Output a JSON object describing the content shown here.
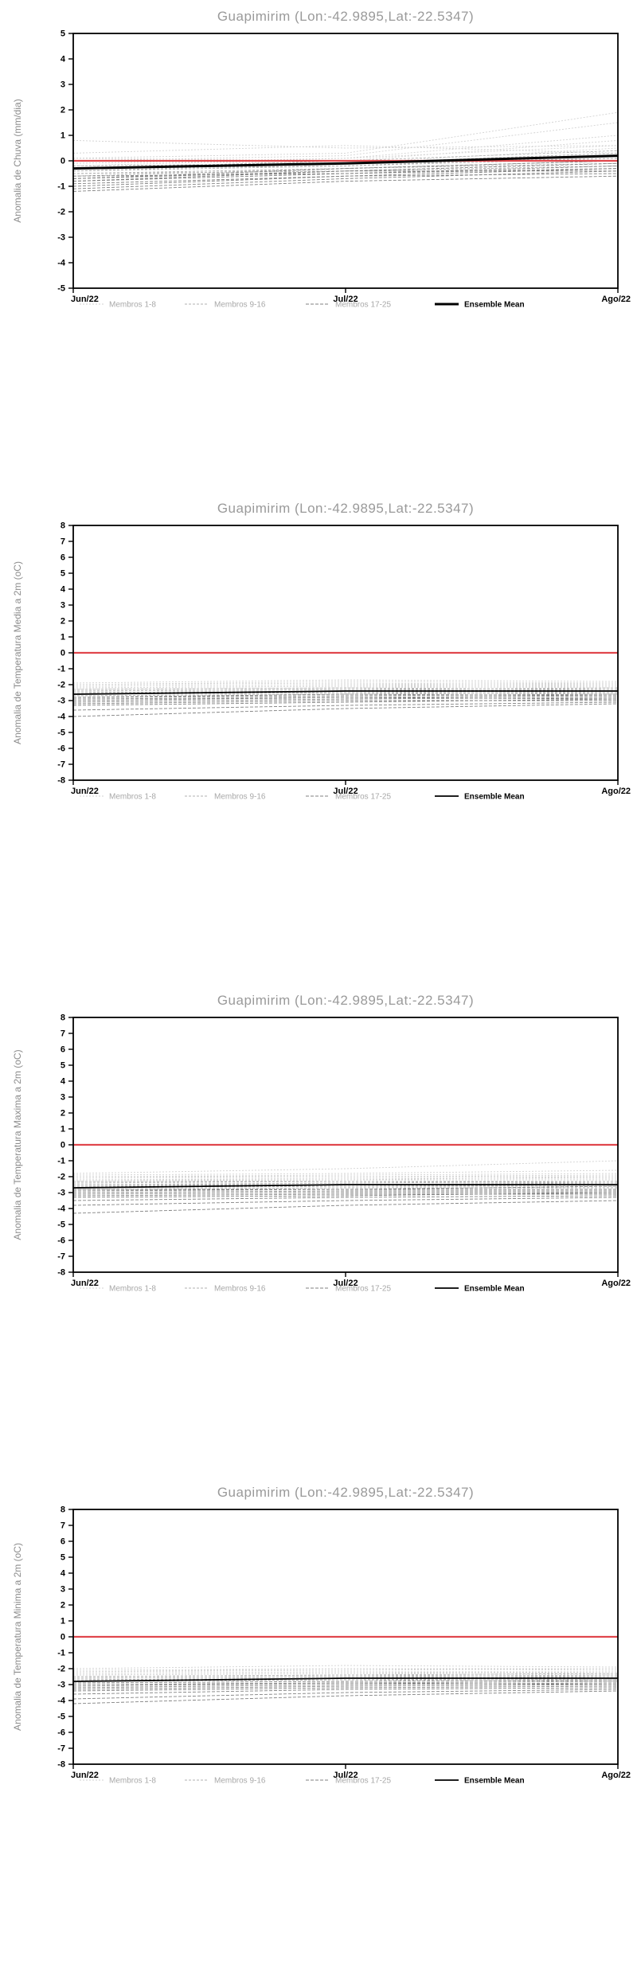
{
  "page": {
    "background": "#ffffff"
  },
  "colors": {
    "title": "#9a9a9a",
    "ylabel": "#8c8c8c",
    "axis": "#000000",
    "tick_label": "#000000",
    "members_1_8": "#d2d2d2",
    "members_9_16": "#b2b2b2",
    "members_17_25": "#828282",
    "ensemble_mean": "#000000",
    "zero_line": "#e0474c",
    "legend_member_label": "#a8a8a8",
    "legend_mean_label": "#000000"
  },
  "legend": {
    "items": [
      {
        "label": "Membros 1-8",
        "style": "dashed",
        "color_key": "members_1_8"
      },
      {
        "label": "Membros 9-16",
        "style": "dashed",
        "color_key": "members_9_16"
      },
      {
        "label": "Membros 17-25",
        "style": "dashed",
        "color_key": "members_17_25"
      },
      {
        "label": "Ensemble Mean",
        "style": "solid",
        "color_key": "ensemble_mean"
      }
    ]
  },
  "chart_data": [
    {
      "type": "line",
      "title": "Guapimirim (Lon:-42.9895,Lat:-22.5347)",
      "ylabel": "Anomalia de Chuva (mm/dia)",
      "x_categories": [
        "Jun/22",
        "Jul/22",
        "Ago/22"
      ],
      "ylim": [
        -5,
        5
      ],
      "ytick_step": 1,
      "grid": false,
      "legend_position": "bottom",
      "zero_line": 0,
      "mean_width": 3,
      "members": [
        [
          0.8,
          0.5,
          0.6
        ],
        [
          0.3,
          0.6,
          0.3
        ],
        [
          0.1,
          0.3,
          1.9
        ],
        [
          0.0,
          0.2,
          1.5
        ],
        [
          -0.1,
          0.1,
          1.0
        ],
        [
          0.1,
          0.0,
          0.8
        ],
        [
          -0.2,
          0.1,
          0.6
        ],
        [
          0.0,
          -0.1,
          0.5
        ],
        [
          -0.3,
          0.0,
          0.4
        ],
        [
          -0.2,
          -0.1,
          0.3
        ],
        [
          -0.4,
          -0.2,
          0.2
        ],
        [
          -0.3,
          -0.2,
          0.1
        ],
        [
          -0.5,
          -0.3,
          0.0
        ],
        [
          -0.4,
          -0.1,
          0.1
        ],
        [
          -0.6,
          -0.3,
          -0.1
        ],
        [
          -0.5,
          -0.4,
          -0.2
        ],
        [
          -0.7,
          -0.4,
          -0.1
        ],
        [
          -0.6,
          -0.5,
          -0.3
        ],
        [
          -0.8,
          -0.5,
          -0.2
        ],
        [
          -0.7,
          -0.3,
          0.0
        ],
        [
          -0.9,
          -0.6,
          -0.3
        ],
        [
          -0.8,
          -0.4,
          -0.4
        ],
        [
          -1.0,
          -0.6,
          -0.5
        ],
        [
          -1.1,
          -0.7,
          -0.4
        ],
        [
          -1.2,
          -0.8,
          -0.6
        ]
      ],
      "ensemble_mean": [
        -0.3,
        -0.1,
        0.2
      ]
    },
    {
      "type": "line",
      "title": "Guapimirim (Lon:-42.9895,Lat:-22.5347)",
      "ylabel": "Anomalia de Temperatura Media a 2m (oC)",
      "x_categories": [
        "Jun/22",
        "Jul/22",
        "Ago/22"
      ],
      "ylim": [
        -8,
        8
      ],
      "ytick_step": 1,
      "grid": false,
      "legend_position": "bottom",
      "zero_line": 0,
      "mean_width": 1.8,
      "members": [
        [
          -1.9,
          -1.7,
          -1.8
        ],
        [
          -2.0,
          -1.8,
          -1.9
        ],
        [
          -2.0,
          -1.9,
          -2.0
        ],
        [
          -2.1,
          -2.0,
          -1.9
        ],
        [
          -2.1,
          -2.0,
          -2.1
        ],
        [
          -2.2,
          -2.1,
          -2.0
        ],
        [
          -2.2,
          -2.1,
          -2.2
        ],
        [
          -2.3,
          -2.2,
          -2.1
        ],
        [
          -2.3,
          -2.2,
          -2.3
        ],
        [
          -2.4,
          -2.3,
          -2.2
        ],
        [
          -2.4,
          -2.3,
          -2.4
        ],
        [
          -2.5,
          -2.4,
          -2.3
        ],
        [
          -2.5,
          -2.4,
          -2.5
        ],
        [
          -2.6,
          -2.5,
          -2.4
        ],
        [
          -2.6,
          -2.5,
          -2.6
        ],
        [
          -2.7,
          -2.6,
          -2.5
        ],
        [
          -2.8,
          -2.6,
          -2.7
        ],
        [
          -2.8,
          -2.7,
          -2.6
        ],
        [
          -2.9,
          -2.8,
          -2.7
        ],
        [
          -3.0,
          -2.8,
          -2.9
        ],
        [
          -3.1,
          -2.9,
          -2.8
        ],
        [
          -3.2,
          -3.0,
          -3.0
        ],
        [
          -3.3,
          -3.1,
          -2.9
        ],
        [
          -3.6,
          -3.3,
          -3.1
        ],
        [
          -4.0,
          -3.5,
          -3.2
        ]
      ],
      "ensemble_mean": [
        -2.6,
        -2.4,
        -2.4
      ]
    },
    {
      "type": "line",
      "title": "Guapimirim (Lon:-42.9895,Lat:-22.5347)",
      "ylabel": "Anomalia de Temperatura Maxima a 2m (oC)",
      "x_categories": [
        "Jun/22",
        "Jul/22",
        "Ago/22"
      ],
      "ylim": [
        -8,
        8
      ],
      "ytick_step": 1,
      "grid": false,
      "legend_position": "bottom",
      "zero_line": 0,
      "mean_width": 1.8,
      "members": [
        [
          -1.8,
          -1.5,
          -1.0
        ],
        [
          -1.9,
          -1.8,
          -1.6
        ],
        [
          -2.0,
          -1.9,
          -1.8
        ],
        [
          -2.0,
          -2.0,
          -1.9
        ],
        [
          -2.1,
          -2.0,
          -2.0
        ],
        [
          -2.2,
          -2.1,
          -2.1
        ],
        [
          -2.2,
          -2.2,
          -2.0
        ],
        [
          -2.3,
          -2.2,
          -2.2
        ],
        [
          -2.3,
          -2.3,
          -2.3
        ],
        [
          -2.4,
          -2.3,
          -2.4
        ],
        [
          -2.5,
          -2.4,
          -2.3
        ],
        [
          -2.5,
          -2.5,
          -2.5
        ],
        [
          -2.6,
          -2.5,
          -2.4
        ],
        [
          -2.6,
          -2.6,
          -2.6
        ],
        [
          -2.7,
          -2.6,
          -2.5
        ],
        [
          -2.8,
          -2.7,
          -2.7
        ],
        [
          -2.8,
          -2.8,
          -2.6
        ],
        [
          -2.9,
          -2.8,
          -2.8
        ],
        [
          -3.0,
          -2.9,
          -2.9
        ],
        [
          -3.1,
          -3.0,
          -3.0
        ],
        [
          -3.2,
          -3.1,
          -3.1
        ],
        [
          -3.3,
          -3.2,
          -3.0
        ],
        [
          -3.5,
          -3.3,
          -3.2
        ],
        [
          -3.8,
          -3.5,
          -3.3
        ],
        [
          -4.3,
          -3.8,
          -3.5
        ]
      ],
      "ensemble_mean": [
        -2.7,
        -2.5,
        -2.5
      ]
    },
    {
      "type": "line",
      "title": "Guapimirim (Lon:-42.9895,Lat:-22.5347)",
      "ylabel": "Anomalia de Temperatura Minima a 2m (oC)",
      "x_categories": [
        "Jun/22",
        "Jul/22",
        "Ago/22"
      ],
      "ylim": [
        -8,
        8
      ],
      "ytick_step": 1,
      "grid": false,
      "legend_position": "bottom",
      "zero_line": 0,
      "mean_width": 1.8,
      "members": [
        [
          -2.0,
          -1.8,
          -1.9
        ],
        [
          -2.1,
          -2.0,
          -2.0
        ],
        [
          -2.2,
          -2.0,
          -2.1
        ],
        [
          -2.2,
          -2.1,
          -2.0
        ],
        [
          -2.3,
          -2.2,
          -2.2
        ],
        [
          -2.3,
          -2.2,
          -2.3
        ],
        [
          -2.4,
          -2.3,
          -2.2
        ],
        [
          -2.4,
          -2.3,
          -2.4
        ],
        [
          -2.5,
          -2.4,
          -2.3
        ],
        [
          -2.5,
          -2.4,
          -2.5
        ],
        [
          -2.6,
          -2.5,
          -2.4
        ],
        [
          -2.6,
          -2.5,
          -2.6
        ],
        [
          -2.7,
          -2.6,
          -2.5
        ],
        [
          -2.7,
          -2.6,
          -2.7
        ],
        [
          -2.8,
          -2.7,
          -2.6
        ],
        [
          -2.8,
          -2.7,
          -2.8
        ],
        [
          -2.9,
          -2.8,
          -2.7
        ],
        [
          -3.0,
          -2.9,
          -2.8
        ],
        [
          -3.1,
          -2.9,
          -3.0
        ],
        [
          -3.2,
          -3.0,
          -2.9
        ],
        [
          -3.3,
          -3.1,
          -3.0
        ],
        [
          -3.4,
          -3.2,
          -3.1
        ],
        [
          -3.6,
          -3.3,
          -3.2
        ],
        [
          -3.9,
          -3.5,
          -3.3
        ],
        [
          -4.2,
          -3.7,
          -3.4
        ]
      ],
      "ensemble_mean": [
        -2.8,
        -2.6,
        -2.6
      ]
    }
  ]
}
